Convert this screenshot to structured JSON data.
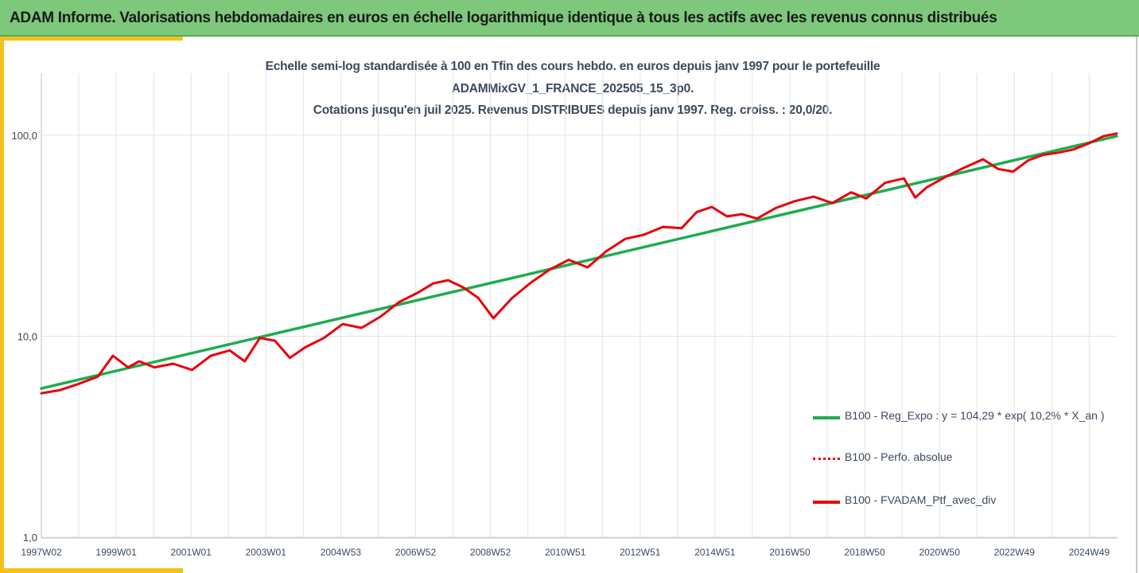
{
  "header": {
    "title": "ADAM Informe. Valorisations hebdomadaires en euros en échelle logarithmique identique à tous les actifs avec les revenus connus distribués"
  },
  "colors": {
    "header_bg": "#7dc87a",
    "accent": "#f2c21b",
    "regression": "#1fab50",
    "perf": "#e8000b",
    "portfolio": "#e8000b"
  },
  "chart_data": {
    "type": "line",
    "title_lines": [
      "Echelle semi-log standardisée à 100 en Tfin des cours hebdo.  en euros depuis janv 1997 pour le portefeuille",
      "ADAMMixGV_1_FRANCE_202505_15_3p0.",
      "Cotations  jusqu'en juil 2025. Revenus DISTRIBUES depuis janv 1997. Reg. croiss. : 20,0/20."
    ],
    "y_scale": "log",
    "ylim": [
      1,
      100
    ],
    "y_ticks": [
      "100,0",
      "10,0",
      "1,0"
    ],
    "y_tick_values": [
      100,
      10,
      1
    ],
    "x_ticks": [
      "1997W02",
      "1999W01",
      "2001W01",
      "2003W01",
      "2004W53",
      "2006W52",
      "2008W52",
      "2010W51",
      "2012W51",
      "2014W51",
      "2016W50",
      "2018W50",
      "2020W50",
      "2022W49",
      "2024W49"
    ],
    "x_range": [
      "1997W02",
      "2025W30"
    ],
    "grid": "vertical",
    "legend_position": "right",
    "series": [
      {
        "name": "B100 - Reg_Expo : y = 104,29 * exp( 10,2% *  X_an )",
        "style": "solid",
        "color": "#1fab50",
        "x": [
          1997.0,
          2025.55
        ],
        "y": [
          5.5,
          99
        ]
      },
      {
        "name": "B100 - Perfo. absolue",
        "style": "dotted",
        "color": "#e8000b",
        "x": [],
        "y": []
      },
      {
        "name": "B100 - FVADAM_Ptf_avec_div",
        "style": "solid",
        "color": "#e8000b",
        "x": [
          1997.0,
          1997.5,
          1998.0,
          1998.5,
          1998.9,
          1999.3,
          1999.6,
          2000.0,
          2000.5,
          2001.0,
          2001.5,
          2002.0,
          2002.4,
          2002.8,
          2003.2,
          2003.6,
          2004.0,
          2004.5,
          2005.0,
          2005.5,
          2006.0,
          2006.5,
          2007.0,
          2007.4,
          2007.8,
          2008.2,
          2008.6,
          2009.0,
          2009.5,
          2010.0,
          2010.5,
          2011.0,
          2011.5,
          2012.0,
          2012.5,
          2013.0,
          2013.5,
          2014.0,
          2014.4,
          2014.8,
          2015.2,
          2015.6,
          2016.0,
          2016.5,
          2017.0,
          2017.5,
          2018.0,
          2018.5,
          2018.9,
          2019.4,
          2019.9,
          2020.2,
          2020.5,
          2021.0,
          2021.5,
          2022.0,
          2022.4,
          2022.8,
          2023.2,
          2023.6,
          2024.0,
          2024.4,
          2024.8,
          2025.2,
          2025.55
        ],
        "y": [
          5.2,
          5.4,
          5.8,
          6.3,
          8.0,
          7.0,
          7.5,
          7.0,
          7.3,
          6.8,
          8.0,
          8.5,
          7.5,
          9.8,
          9.5,
          7.8,
          8.8,
          9.8,
          11.5,
          11.0,
          12.5,
          14.8,
          16.5,
          18.3,
          19.0,
          17.5,
          15.5,
          12.3,
          15.5,
          18.5,
          21.5,
          24.0,
          22.0,
          26.5,
          30.5,
          32.0,
          35.0,
          34.5,
          41.5,
          44.0,
          39.5,
          40.5,
          38.5,
          43.5,
          47.0,
          49.5,
          46.0,
          52.0,
          48.5,
          58.0,
          61.0,
          49.0,
          55.0,
          62.0,
          69.0,
          76.0,
          68.0,
          66.0,
          75.0,
          80.0,
          82.0,
          85.0,
          91.0,
          99.0,
          102.0
        ]
      }
    ]
  }
}
